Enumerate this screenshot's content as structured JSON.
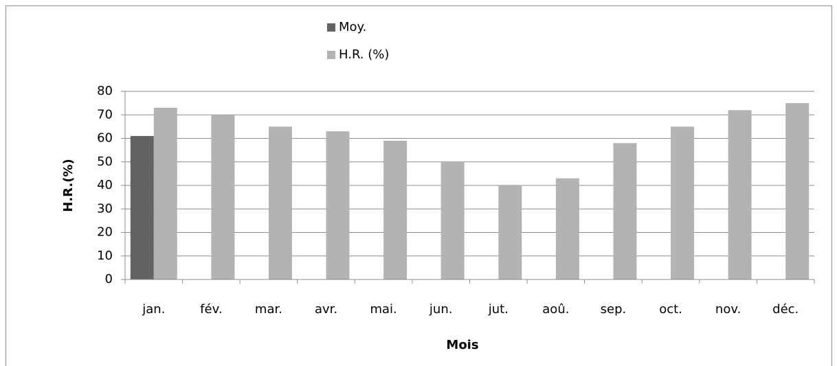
{
  "chart_data": {
    "type": "bar",
    "categories": [
      "jan.",
      "fév.",
      "mar.",
      "avr.",
      "mai.",
      "jun.",
      "jut.",
      "aoû.",
      "sep.",
      "oct.",
      "nov.",
      "déc."
    ],
    "series": [
      {
        "name": "Moy.",
        "color": "#636363",
        "values": [
          61,
          null,
          null,
          null,
          null,
          null,
          null,
          null,
          null,
          null,
          null,
          null
        ]
      },
      {
        "name": "H.R. (%)",
        "color": "#b3b3b3",
        "values": [
          73,
          70,
          65,
          63,
          59,
          50,
          40,
          43,
          58,
          65,
          72,
          75
        ]
      }
    ],
    "x_label": "Mois",
    "y_label": "H.R.(%)",
    "ylim": [
      0,
      80
    ],
    "yticks": [
      0,
      10,
      20,
      30,
      40,
      50,
      60,
      70,
      80
    ],
    "grid": true,
    "legend": "top"
  }
}
